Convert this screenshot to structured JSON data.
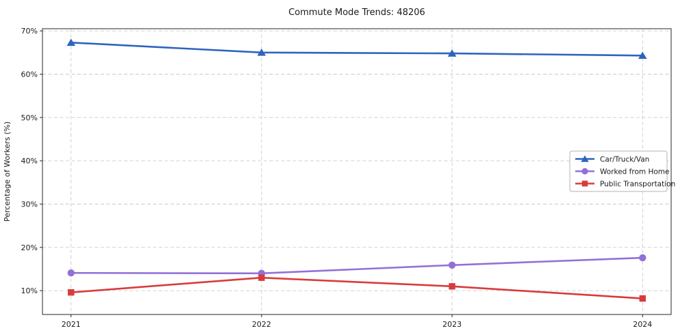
{
  "chart_data": {
    "type": "line",
    "title": "Commute Mode Trends: 48206",
    "xlabel": "",
    "ylabel": "Percentage of Workers (%)",
    "categories": [
      "2021",
      "2022",
      "2023",
      "2024"
    ],
    "series": [
      {
        "name": "Car/Truck/Van",
        "values": [
          67.3,
          65.0,
          64.8,
          64.3
        ],
        "color": "#2e64bf",
        "marker": "triangle"
      },
      {
        "name": "Worked from Home",
        "values": [
          14.1,
          14.0,
          15.9,
          17.6
        ],
        "color": "#9370d8",
        "marker": "circle"
      },
      {
        "name": "Public Transportation",
        "values": [
          9.6,
          13.0,
          11.0,
          8.2
        ],
        "color": "#d93b3b",
        "marker": "square"
      }
    ],
    "x_numeric": [
      2021,
      2022,
      2023,
      2024
    ],
    "xlim": [
      2020.85,
      2024.15
    ],
    "ylim": [
      4.5,
      70.5
    ],
    "yticks": [
      10,
      20,
      30,
      40,
      50,
      60,
      70
    ],
    "ytick_suffix": "%",
    "grid": true,
    "grid_style": "dashed",
    "legend_position": "center-right",
    "colors": {
      "background": "#ffffff",
      "grid": "#c9c9c9",
      "spine": "#262626",
      "text": "#1a1a1a",
      "legend_border": "#b3b3b3",
      "legend_bg": "#ffffff"
    }
  }
}
